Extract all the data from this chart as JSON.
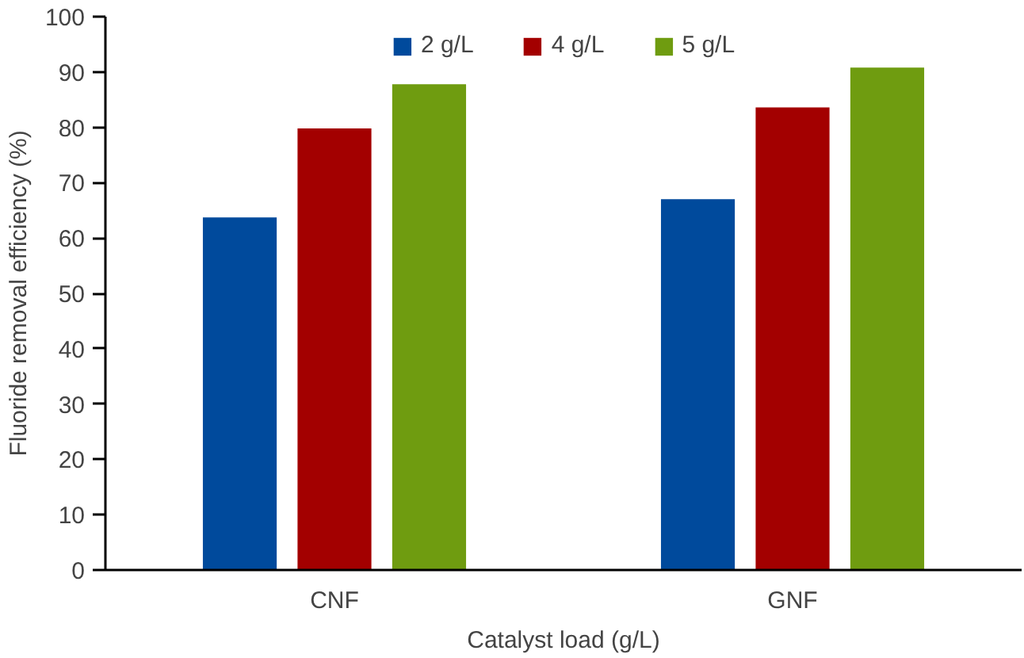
{
  "chart_data": {
    "type": "bar",
    "xlabel": "Catalyst load (g/L)",
    "ylabel": "Fluoride removal efficiency (%)",
    "categories": [
      "CNF",
      "GNF"
    ],
    "series": [
      {
        "name": "2 g/L",
        "color": "#004a9c",
        "values": [
          63.7,
          67
        ]
      },
      {
        "name": "4 g/L",
        "color": "#a30000",
        "values": [
          79.8,
          83.6
        ]
      },
      {
        "name": "5 g/L",
        "color": "#6f9c10",
        "values": [
          87.8,
          90.8
        ]
      }
    ],
    "ylim": [
      0,
      100
    ],
    "yticks": [
      0,
      10,
      20,
      30,
      40,
      50,
      60,
      70,
      80,
      90,
      100
    ],
    "grid": false,
    "legend": "top"
  }
}
